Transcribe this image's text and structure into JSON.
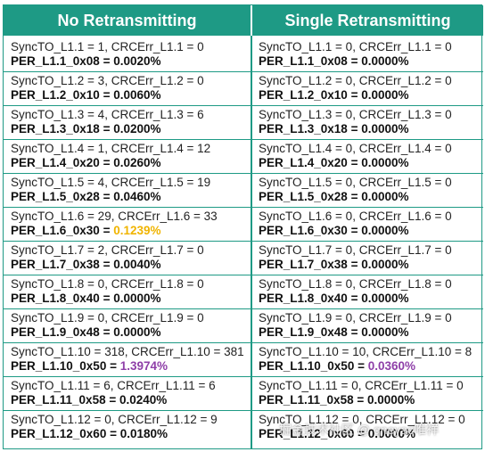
{
  "headers": {
    "left": "No Retransmitting",
    "right": "Single Retransmitting"
  },
  "left_rows": [
    {
      "sync": "SyncTO_L1.1 = 1, CRCErr_L1.1 = 0",
      "per_label": "PER_L1.1_0x08 = ",
      "per_value": "0.0020%",
      "highlight": ""
    },
    {
      "sync": "SyncTO_L1.2 = 3, CRCErr_L1.2 = 0",
      "per_label": "PER_L1.2_0x10 = ",
      "per_value": "0.0060%",
      "highlight": ""
    },
    {
      "sync": "SyncTO_L1.3 = 4, CRCErr_L1.3 = 6",
      "per_label": "PER_L1.3_0x18 = ",
      "per_value": "0.0200%",
      "highlight": ""
    },
    {
      "sync": "SyncTO_L1.4 = 1, CRCErr_L1.4 = 12",
      "per_label": "PER_L1.4_0x20 = ",
      "per_value": "0.0260%",
      "highlight": ""
    },
    {
      "sync": "SyncTO_L1.5 = 4, CRCErr_L1.5 = 19",
      "per_label": "PER_L1.5_0x28 = ",
      "per_value": "0.0460%",
      "highlight": ""
    },
    {
      "sync": "SyncTO_L1.6 = 29, CRCErr_L1.6 = 33",
      "per_label": "PER_L1.6_0x30 = ",
      "per_value": "0.1239%",
      "highlight": "yellow"
    },
    {
      "sync": "SyncTO_L1.7 = 2, CRCErr_L1.7 = 0",
      "per_label": "PER_L1.7_0x38 = ",
      "per_value": "0.0040%",
      "highlight": ""
    },
    {
      "sync": "SyncTO_L1.8 = 0, CRCErr_L1.8 = 0",
      "per_label": "PER_L1.8_0x40 = ",
      "per_value": "0.0000%",
      "highlight": ""
    },
    {
      "sync": "SyncTO_L1.9 = 0, CRCErr_L1.9 = 0",
      "per_label": "PER_L1.9_0x48 = ",
      "per_value": "0.0000%",
      "highlight": ""
    },
    {
      "sync": "SyncTO_L1.10 = 318, CRCErr_L1.10 = 381",
      "per_label": "PER_L1.10_0x50 = ",
      "per_value": "1.3974%",
      "highlight": "purple"
    },
    {
      "sync": "SyncTO_L1.11 = 6, CRCErr_L1.11 = 6",
      "per_label": "PER_L1.11_0x58 = ",
      "per_value": "0.0240%",
      "highlight": ""
    },
    {
      "sync": "SyncTO_L1.12 = 0, CRCErr_L1.12 = 9",
      "per_label": "PER_L1.12_0x60 = ",
      "per_value": "0.0180%",
      "highlight": ""
    }
  ],
  "right_rows": [
    {
      "sync": "SyncTO_L1.1 = 0, CRCErr_L1.1 = 0",
      "per_label": "PER_L1.1_0x08 = ",
      "per_value": "0.0000%",
      "highlight": ""
    },
    {
      "sync": "SyncTO_L1.2 = 0, CRCErr_L1.2 = 0",
      "per_label": "PER_L1.2_0x10 = ",
      "per_value": "0.0000%",
      "highlight": ""
    },
    {
      "sync": "SyncTO_L1.3 = 0, CRCErr_L1.3 = 0",
      "per_label": "PER_L1.3_0x18 = ",
      "per_value": "0.0000%",
      "highlight": ""
    },
    {
      "sync": "SyncTO_L1.4 = 0, CRCErr_L1.4 = 0",
      "per_label": "PER_L1.4_0x20 = ",
      "per_value": "0.0000%",
      "highlight": ""
    },
    {
      "sync": "SyncTO_L1.5 = 0, CRCErr_L1.5 = 0",
      "per_label": "PER_L1.5_0x28 = ",
      "per_value": "0.0000%",
      "highlight": ""
    },
    {
      "sync": "SyncTO_L1.6 = 0, CRCErr_L1.6 = 0",
      "per_label": "PER_L1.6_0x30 = ",
      "per_value": "0.0000%",
      "highlight": ""
    },
    {
      "sync": "SyncTO_L1.7 = 0, CRCErr_L1.7 = 0",
      "per_label": "PER_L1.7_0x38 = ",
      "per_value": "0.0000%",
      "highlight": ""
    },
    {
      "sync": "SyncTO_L1.8 = 0, CRCErr_L1.8 = 0",
      "per_label": "PER_L1.8_0x40 = ",
      "per_value": "0.0000%",
      "highlight": ""
    },
    {
      "sync": "SyncTO_L1.9 = 0, CRCErr_L1.9 = 0",
      "per_label": "PER_L1.9_0x48 = ",
      "per_value": "0.0000%",
      "highlight": ""
    },
    {
      "sync": "SyncTO_L1.10 = 10, CRCErr_L1.10 = 8",
      "per_label": "PER_L1.10_0x50 = ",
      "per_value": "0.0360%",
      "highlight": "purple"
    },
    {
      "sync": "SyncTO_L1.11 = 0, CRCErr_L1.11 = 0",
      "per_label": "PER_L1.11_0x58 = ",
      "per_value": "0.0000%",
      "highlight": ""
    },
    {
      "sync": "SyncTO_L1.12 = 0, CRCErr_L1.12 = 0",
      "per_label": "PER_L1.12_0x60 = ",
      "per_value": "0.0000%",
      "highlight": ""
    }
  ],
  "colors": {
    "header_bg": "#1e9a85",
    "highlight_yellow": "#f0b400",
    "highlight_purple": "#8e3fa8"
  },
  "watermark": "掘金技术社区 @ qneyac唯祥"
}
